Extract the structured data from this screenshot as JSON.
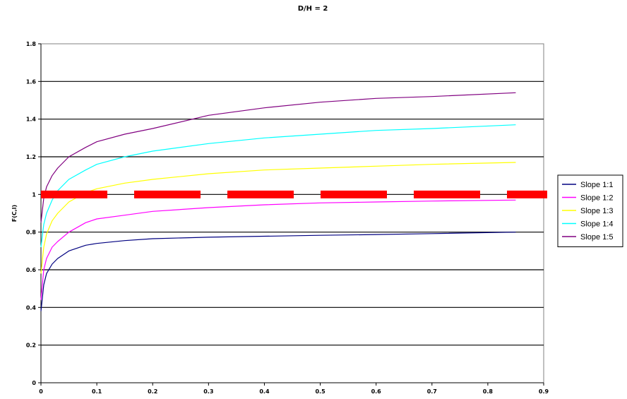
{
  "chart_data": {
    "type": "line",
    "title": "D/H = 2",
    "xlabel": "",
    "ylabel": "F(C,l)",
    "xlim": [
      0,
      0.9
    ],
    "ylim": [
      0,
      1.8
    ],
    "xticks": [
      "0",
      "0.1",
      "0.2",
      "0.3",
      "0.4",
      "0.5",
      "0.6",
      "0.7",
      "0.8",
      "0.9"
    ],
    "yticks": [
      "0",
      "0.2",
      "0.4",
      "0.6",
      "0.8",
      "1",
      "1.2",
      "1.4",
      "1.6",
      "1.8"
    ],
    "grid": "horizontal",
    "legend_position": "right",
    "reference_line": {
      "y": 1.0,
      "color": "#ff0000",
      "style": "dashed"
    },
    "series": [
      {
        "name": "Slope 1:1",
        "color": "#000080",
        "x": [
          0,
          0.005,
          0.01,
          0.02,
          0.03,
          0.05,
          0.08,
          0.1,
          0.15,
          0.2,
          0.3,
          0.4,
          0.5,
          0.6,
          0.7,
          0.85
        ],
        "values": [
          0.38,
          0.52,
          0.58,
          0.63,
          0.66,
          0.7,
          0.73,
          0.74,
          0.755,
          0.765,
          0.773,
          0.778,
          0.783,
          0.787,
          0.792,
          0.8
        ]
      },
      {
        "name": "Slope 1:2",
        "color": "#ff00ff",
        "x": [
          0,
          0.005,
          0.01,
          0.02,
          0.03,
          0.05,
          0.08,
          0.1,
          0.15,
          0.2,
          0.3,
          0.4,
          0.5,
          0.6,
          0.7,
          0.85
        ],
        "values": [
          0.44,
          0.6,
          0.66,
          0.72,
          0.75,
          0.8,
          0.85,
          0.87,
          0.89,
          0.91,
          0.93,
          0.945,
          0.955,
          0.96,
          0.965,
          0.97
        ]
      },
      {
        "name": "Slope 1:3",
        "color": "#ffff00",
        "x": [
          0,
          0.005,
          0.01,
          0.02,
          0.03,
          0.05,
          0.08,
          0.1,
          0.15,
          0.2,
          0.3,
          0.4,
          0.5,
          0.6,
          0.7,
          0.85
        ],
        "values": [
          0.58,
          0.72,
          0.79,
          0.86,
          0.9,
          0.96,
          1.01,
          1.03,
          1.06,
          1.08,
          1.11,
          1.13,
          1.14,
          1.15,
          1.16,
          1.17
        ]
      },
      {
        "name": "Slope 1:4",
        "color": "#00ffff",
        "x": [
          0,
          0.005,
          0.01,
          0.02,
          0.03,
          0.05,
          0.08,
          0.1,
          0.15,
          0.2,
          0.3,
          0.4,
          0.5,
          0.6,
          0.7,
          0.85
        ],
        "values": [
          0.72,
          0.84,
          0.9,
          0.97,
          1.02,
          1.08,
          1.13,
          1.16,
          1.2,
          1.23,
          1.27,
          1.3,
          1.32,
          1.34,
          1.35,
          1.37
        ]
      },
      {
        "name": "Slope 1:5",
        "color": "#800080",
        "x": [
          0,
          0.005,
          0.01,
          0.02,
          0.03,
          0.05,
          0.08,
          0.1,
          0.15,
          0.2,
          0.3,
          0.4,
          0.5,
          0.6,
          0.7,
          0.85
        ],
        "values": [
          0.85,
          0.98,
          1.04,
          1.1,
          1.14,
          1.2,
          1.25,
          1.28,
          1.32,
          1.35,
          1.42,
          1.46,
          1.49,
          1.51,
          1.52,
          1.54
        ]
      }
    ]
  }
}
